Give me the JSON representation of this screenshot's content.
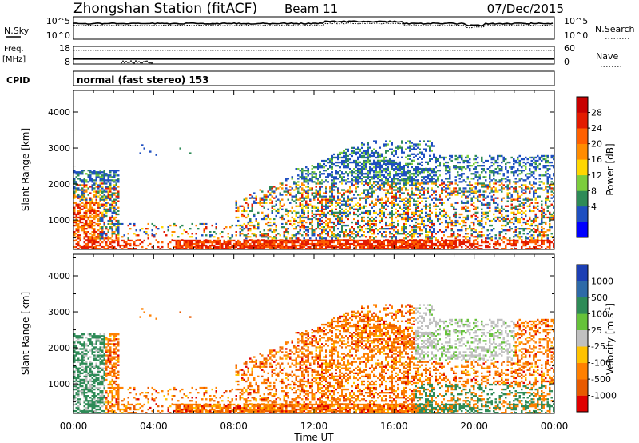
{
  "header": {
    "station": "Zhongshan Station (fitACF)",
    "beam": "Beam 11",
    "date": "07/Dec/2015"
  },
  "strip_sky": {
    "left_label": "N.Sky",
    "left_ticks": [
      "10^5",
      "10^0"
    ],
    "right_ticks": [
      "10^5",
      "10^0"
    ],
    "right_label": "N.Search",
    "sky_level": 0.7,
    "search_level": 0.62
  },
  "strip_freq": {
    "left_label_1": "Freq.",
    "left_label_2": "[MHz]",
    "left_ticks": [
      "18",
      "8"
    ],
    "right_ticks": [
      "60",
      "0"
    ],
    "right_label": "Nave",
    "freq_level": 0.28,
    "nave_level": 0.78
  },
  "cpid": {
    "label": "CPID",
    "mode": "normal (fast stereo) 153"
  },
  "axes": {
    "ylabel": "Slant Range [km]",
    "xlabel": "Time UT",
    "yticks": [
      "4000",
      "3000",
      "2000",
      "1000"
    ],
    "xticks": [
      "00:00",
      "04:00",
      "08:00",
      "12:00",
      "16:00",
      "20:00",
      "00:00"
    ]
  },
  "chart_data": [
    {
      "type": "heatmap",
      "name": "power",
      "colorbar_label": "Power [dB]",
      "colorbar_ticks": [
        "28",
        "24",
        "20",
        "16",
        "12",
        "8",
        "4"
      ],
      "colors": [
        "#0000ff",
        "#1e4fc1",
        "#2e8b57",
        "#7ccd3c",
        "#ffd700",
        "#ff8c00",
        "#ff6000",
        "#e31b00",
        "#c80000"
      ],
      "x_range_hours": [
        0,
        24
      ],
      "y_range_km": [
        180,
        4600
      ]
    },
    {
      "type": "heatmap",
      "name": "velocity",
      "colorbar_label": "Velocity [m s^-1]",
      "colorbar_ticks": [
        "1000",
        "500",
        "100",
        "25",
        "-25",
        "-100",
        "-500",
        "-1000"
      ],
      "colors": [
        "#1c3fb4",
        "#2e6aa8",
        "#2e8b57",
        "#66c23a",
        "#c0c0c0",
        "#ffc200",
        "#ff8000",
        "#e85a00",
        "#e00000"
      ],
      "x_range_hours": [
        0,
        24
      ],
      "y_range_km": [
        180,
        4600
      ]
    }
  ]
}
